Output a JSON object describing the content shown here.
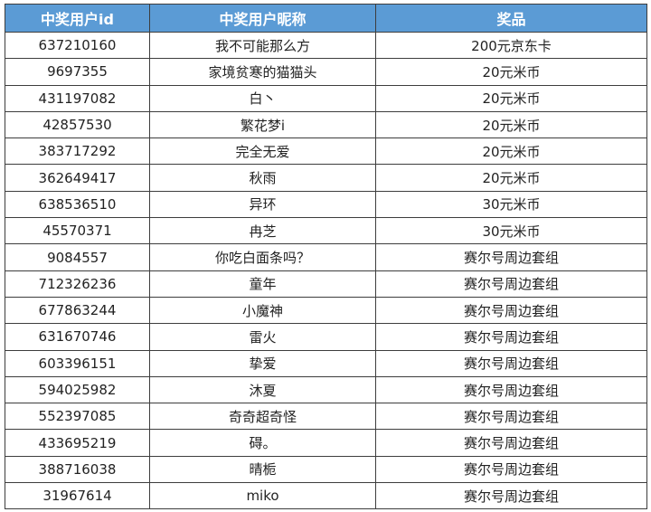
{
  "headers": [
    "中奖用户id",
    "中奖用户昵称",
    "奖品"
  ],
  "header_color": "#5b9bd5",
  "rows": [
    [
      "637210160",
      "我不可能那么方",
      "200元京东卡"
    ],
    [
      "9697355",
      "家境贫寒的猫猫头",
      "20元米币"
    ],
    [
      "431197082",
      "白丶",
      "20元米币"
    ],
    [
      "42857530",
      "繁花梦i",
      "20元米币"
    ],
    [
      "383717292",
      "完全无爱",
      "20元米币"
    ],
    [
      "362649417",
      "秋雨",
      "20元米币"
    ],
    [
      "638536510",
      "异环",
      "30元米币"
    ],
    [
      "45570371",
      "冉芝",
      "30元米币"
    ],
    [
      "9084557",
      "你吃白面条吗？",
      "赛尔号周边套组"
    ],
    [
      "712326236",
      "童年",
      "赛尔号周边套组"
    ],
    [
      "677863244",
      "小魔神",
      "赛尔号周边套组"
    ],
    [
      "631670746",
      "雷火",
      "赛尔号周边套组"
    ],
    [
      "603396151",
      "挚爱",
      "赛尔号周边套组"
    ],
    [
      "594025982",
      "沐夏",
      "赛尔号周边套组"
    ],
    [
      "552397085",
      "奇奇超奇怪",
      "赛尔号周边套组"
    ],
    [
      "433695219",
      "碍。",
      "赛尔号周边套组"
    ],
    [
      "388716038",
      "晴栀",
      "赛尔号周边套组"
    ],
    [
      "31967614",
      "miko",
      "赛尔号周边套组"
    ]
  ]
}
